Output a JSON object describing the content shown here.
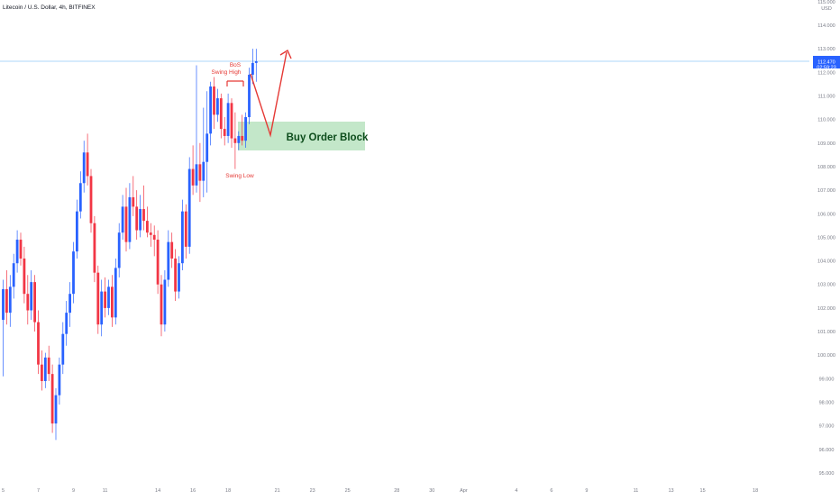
{
  "header": {
    "title": "Litecoin / U.S. Dollar, 4h, BITFINEX"
  },
  "price_axis": {
    "currency": "USD",
    "current_price": "112.470",
    "countdown": "02:59:23"
  },
  "annotations": {
    "bos": "BoS",
    "swing_high": "Swing High",
    "swing_low": "Swing Low",
    "order_block": "Buy Order Block"
  },
  "colors": {
    "up": "#2962ff",
    "down": "#f23645",
    "annotation": "#e53935",
    "order_block_fill": "#b9e3bf",
    "order_block_text": "#0d4d1c",
    "price_line": "#90caf9",
    "price_label_bg": "#2962ff"
  },
  "chart_data": {
    "type": "candlestick",
    "title": "Litecoin / U.S. Dollar, 4h, BITFINEX",
    "ylim": [
      94.5,
      115.0
    ],
    "y_ticks": [
      "95.000",
      "96.000",
      "97.000",
      "98.000",
      "99.000",
      "100.000",
      "101.000",
      "102.000",
      "103.000",
      "104.000",
      "105.000",
      "106.000",
      "107.000",
      "108.000",
      "109.000",
      "110.000",
      "111.000",
      "112.000",
      "113.000",
      "114.000",
      "115.000"
    ],
    "x_ticks": [
      {
        "label": "5",
        "idx": 0
      },
      {
        "label": "7",
        "idx": 10
      },
      {
        "label": "9",
        "idx": 20
      },
      {
        "label": "11",
        "idx": 29
      },
      {
        "label": "14",
        "idx": 44
      },
      {
        "label": "16",
        "idx": 54
      },
      {
        "label": "18",
        "idx": 64
      },
      {
        "label": "21",
        "idx": 78
      },
      {
        "label": "23",
        "idx": 88
      },
      {
        "label": "25",
        "idx": 98
      },
      {
        "label": "28",
        "idx": 112
      },
      {
        "label": "30",
        "idx": 122
      },
      {
        "label": "Apr",
        "idx": 131
      },
      {
        "label": "4",
        "idx": 146
      },
      {
        "label": "6",
        "idx": 156
      },
      {
        "label": "9",
        "idx": 166
      },
      {
        "label": "11",
        "idx": 180
      },
      {
        "label": "13",
        "idx": 190
      },
      {
        "label": "15",
        "idx": 199
      },
      {
        "label": "18",
        "idx": 214
      }
    ],
    "candles": [
      {
        "o": 101.5,
        "h": 103.2,
        "l": 99.1,
        "c": 102.8
      },
      {
        "o": 102.8,
        "h": 103.6,
        "l": 101.3,
        "c": 101.8
      },
      {
        "o": 101.8,
        "h": 103.4,
        "l": 101.2,
        "c": 102.9
      },
      {
        "o": 102.9,
        "h": 104.3,
        "l": 102.4,
        "c": 103.9
      },
      {
        "o": 103.9,
        "h": 105.3,
        "l": 103.5,
        "c": 104.9
      },
      {
        "o": 104.9,
        "h": 105.2,
        "l": 103.8,
        "c": 104.1
      },
      {
        "o": 104.1,
        "h": 104.6,
        "l": 102.2,
        "c": 102.6
      },
      {
        "o": 102.6,
        "h": 103.4,
        "l": 101.3,
        "c": 101.9
      },
      {
        "o": 101.9,
        "h": 103.6,
        "l": 101.5,
        "c": 103.1
      },
      {
        "o": 103.1,
        "h": 103.4,
        "l": 101.0,
        "c": 101.4
      },
      {
        "o": 101.4,
        "h": 101.9,
        "l": 99.2,
        "c": 99.6
      },
      {
        "o": 99.6,
        "h": 100.2,
        "l": 98.5,
        "c": 98.9
      },
      {
        "o": 98.9,
        "h": 100.1,
        "l": 98.6,
        "c": 99.9
      },
      {
        "o": 99.9,
        "h": 100.4,
        "l": 98.9,
        "c": 99.2
      },
      {
        "o": 99.2,
        "h": 99.6,
        "l": 96.7,
        "c": 97.1
      },
      {
        "o": 97.1,
        "h": 98.6,
        "l": 96.4,
        "c": 98.3
      },
      {
        "o": 98.3,
        "h": 99.9,
        "l": 97.9,
        "c": 99.6
      },
      {
        "o": 99.6,
        "h": 101.4,
        "l": 99.2,
        "c": 100.9
      },
      {
        "o": 100.9,
        "h": 102.3,
        "l": 100.4,
        "c": 101.8
      },
      {
        "o": 101.8,
        "h": 103.1,
        "l": 101.2,
        "c": 102.6
      },
      {
        "o": 102.6,
        "h": 104.8,
        "l": 102.2,
        "c": 104.4
      },
      {
        "o": 104.4,
        "h": 106.6,
        "l": 104.1,
        "c": 106.1
      },
      {
        "o": 106.1,
        "h": 107.8,
        "l": 105.8,
        "c": 107.3
      },
      {
        "o": 107.3,
        "h": 109.1,
        "l": 106.9,
        "c": 108.6
      },
      {
        "o": 108.6,
        "h": 109.4,
        "l": 107.2,
        "c": 107.6
      },
      {
        "o": 107.6,
        "h": 107.9,
        "l": 105.2,
        "c": 105.6
      },
      {
        "o": 105.6,
        "h": 105.9,
        "l": 103.1,
        "c": 103.5
      },
      {
        "o": 103.5,
        "h": 103.8,
        "l": 100.9,
        "c": 101.3
      },
      {
        "o": 101.3,
        "h": 103.2,
        "l": 100.8,
        "c": 102.7
      },
      {
        "o": 102.7,
        "h": 103.3,
        "l": 101.6,
        "c": 102.0
      },
      {
        "o": 102.0,
        "h": 103.2,
        "l": 101.7,
        "c": 102.9
      },
      {
        "o": 102.9,
        "h": 103.4,
        "l": 101.2,
        "c": 101.6
      },
      {
        "o": 101.6,
        "h": 104.1,
        "l": 101.3,
        "c": 103.7
      },
      {
        "o": 103.7,
        "h": 105.6,
        "l": 103.3,
        "c": 105.2
      },
      {
        "o": 105.2,
        "h": 106.8,
        "l": 104.9,
        "c": 106.3
      },
      {
        "o": 106.3,
        "h": 107.1,
        "l": 104.4,
        "c": 104.8
      },
      {
        "o": 104.8,
        "h": 107.3,
        "l": 104.5,
        "c": 106.7
      },
      {
        "o": 106.7,
        "h": 107.6,
        "l": 105.9,
        "c": 106.3
      },
      {
        "o": 106.3,
        "h": 107.0,
        "l": 104.9,
        "c": 105.3
      },
      {
        "o": 105.3,
        "h": 106.8,
        "l": 105.0,
        "c": 106.2
      },
      {
        "o": 106.2,
        "h": 107.2,
        "l": 105.3,
        "c": 105.7
      },
      {
        "o": 105.7,
        "h": 106.3,
        "l": 105.0,
        "c": 105.2
      },
      {
        "o": 105.2,
        "h": 105.6,
        "l": 104.6,
        "c": 105.1
      },
      {
        "o": 105.1,
        "h": 105.5,
        "l": 104.2,
        "c": 104.9
      },
      {
        "o": 104.9,
        "h": 105.3,
        "l": 102.6,
        "c": 103.0
      },
      {
        "o": 103.0,
        "h": 103.4,
        "l": 100.8,
        "c": 101.3
      },
      {
        "o": 101.3,
        "h": 103.6,
        "l": 101.0,
        "c": 103.2
      },
      {
        "o": 103.2,
        "h": 105.3,
        "l": 102.9,
        "c": 104.8
      },
      {
        "o": 104.8,
        "h": 105.2,
        "l": 103.7,
        "c": 104.1
      },
      {
        "o": 104.1,
        "h": 104.5,
        "l": 102.3,
        "c": 102.7
      },
      {
        "o": 102.7,
        "h": 104.2,
        "l": 102.4,
        "c": 103.9
      },
      {
        "o": 103.9,
        "h": 106.6,
        "l": 103.6,
        "c": 106.1
      },
      {
        "o": 106.1,
        "h": 106.4,
        "l": 104.1,
        "c": 104.6
      },
      {
        "o": 104.6,
        "h": 108.4,
        "l": 104.3,
        "c": 107.9
      },
      {
        "o": 107.9,
        "h": 108.9,
        "l": 106.8,
        "c": 107.2
      },
      {
        "o": 107.2,
        "h": 112.3,
        "l": 106.9,
        "c": 108.1
      },
      {
        "o": 108.1,
        "h": 109.0,
        "l": 106.5,
        "c": 107.4
      },
      {
        "o": 107.4,
        "h": 110.5,
        "l": 106.7,
        "c": 108.2
      },
      {
        "o": 108.2,
        "h": 111.2,
        "l": 106.9,
        "c": 109.4
      },
      {
        "o": 109.4,
        "h": 111.6,
        "l": 108.9,
        "c": 111.4
      },
      {
        "o": 111.4,
        "h": 111.8,
        "l": 109.6,
        "c": 110.2
      },
      {
        "o": 110.2,
        "h": 111.3,
        "l": 109.9,
        "c": 110.9
      },
      {
        "o": 110.9,
        "h": 111.1,
        "l": 109.2,
        "c": 109.6
      },
      {
        "o": 109.6,
        "h": 110.1,
        "l": 108.9,
        "c": 109.3
      },
      {
        "o": 109.3,
        "h": 111.1,
        "l": 109.0,
        "c": 110.7
      },
      {
        "o": 110.7,
        "h": 110.9,
        "l": 108.8,
        "c": 109.2
      },
      {
        "o": 109.2,
        "h": 110.3,
        "l": 107.9,
        "c": 109.0
      },
      {
        "o": 109.0,
        "h": 109.5,
        "l": 108.7,
        "c": 109.3
      },
      {
        "o": 109.3,
        "h": 110.2,
        "l": 108.9,
        "c": 109.1
      },
      {
        "o": 109.1,
        "h": 110.3,
        "l": 108.8,
        "c": 110.1
      },
      {
        "o": 110.1,
        "h": 112.2,
        "l": 109.8,
        "c": 111.9
      },
      {
        "o": 111.9,
        "h": 113.0,
        "l": 111.5,
        "c": 112.4
      },
      {
        "o": 112.4,
        "h": 113.0,
        "l": 111.6,
        "c": 112.47
      }
    ]
  }
}
